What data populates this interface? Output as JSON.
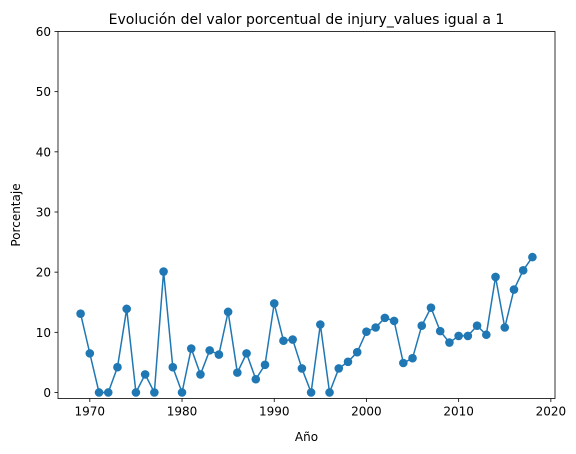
{
  "chart_data": {
    "type": "line",
    "title": "Evolución del valor porcentual de injury_values igual a 1",
    "xlabel": "Año",
    "ylabel": "Porcentaje",
    "xlim": [
      1966.55,
      2020.45
    ],
    "ylim": [
      -1,
      60
    ],
    "x_ticks": [
      1970,
      1980,
      1990,
      2000,
      2010,
      2020
    ],
    "y_ticks": [
      0,
      10,
      20,
      30,
      40,
      50,
      60
    ],
    "grid": false,
    "legend": "none",
    "series": [
      {
        "color": "#1f77b4",
        "marker": "circle",
        "x": [
          1969,
          1970,
          1971,
          1972,
          1973,
          1974,
          1975,
          1976,
          1977,
          1978,
          1979,
          1980,
          1981,
          1982,
          1983,
          1984,
          1985,
          1986,
          1987,
          1988,
          1989,
          1990,
          1991,
          1992,
          1993,
          1994,
          1995,
          1996,
          1997,
          1998,
          1999,
          2000,
          2001,
          2002,
          2003,
          2004,
          2005,
          2006,
          2007,
          2008,
          2009,
          2010,
          2011,
          2012,
          2013,
          2014,
          2015,
          2016,
          2017,
          2018
        ],
        "values": [
          13.1,
          6.5,
          0,
          0,
          4.2,
          13.9,
          0,
          3,
          0,
          20.1,
          4.2,
          0,
          7.3,
          3,
          7,
          6.3,
          13.4,
          3.3,
          6.5,
          2.2,
          4.6,
          14.8,
          8.6,
          8.8,
          4,
          0,
          11.3,
          0,
          4,
          5.1,
          6.7,
          10.1,
          10.8,
          12.4,
          11.9,
          4.9,
          5.7,
          11.1,
          14.1,
          10.2,
          8.3,
          9.4,
          9.4,
          11.1,
          9.6,
          19.2,
          10.8,
          17.1,
          20.3,
          22.5
        ]
      }
    ]
  }
}
